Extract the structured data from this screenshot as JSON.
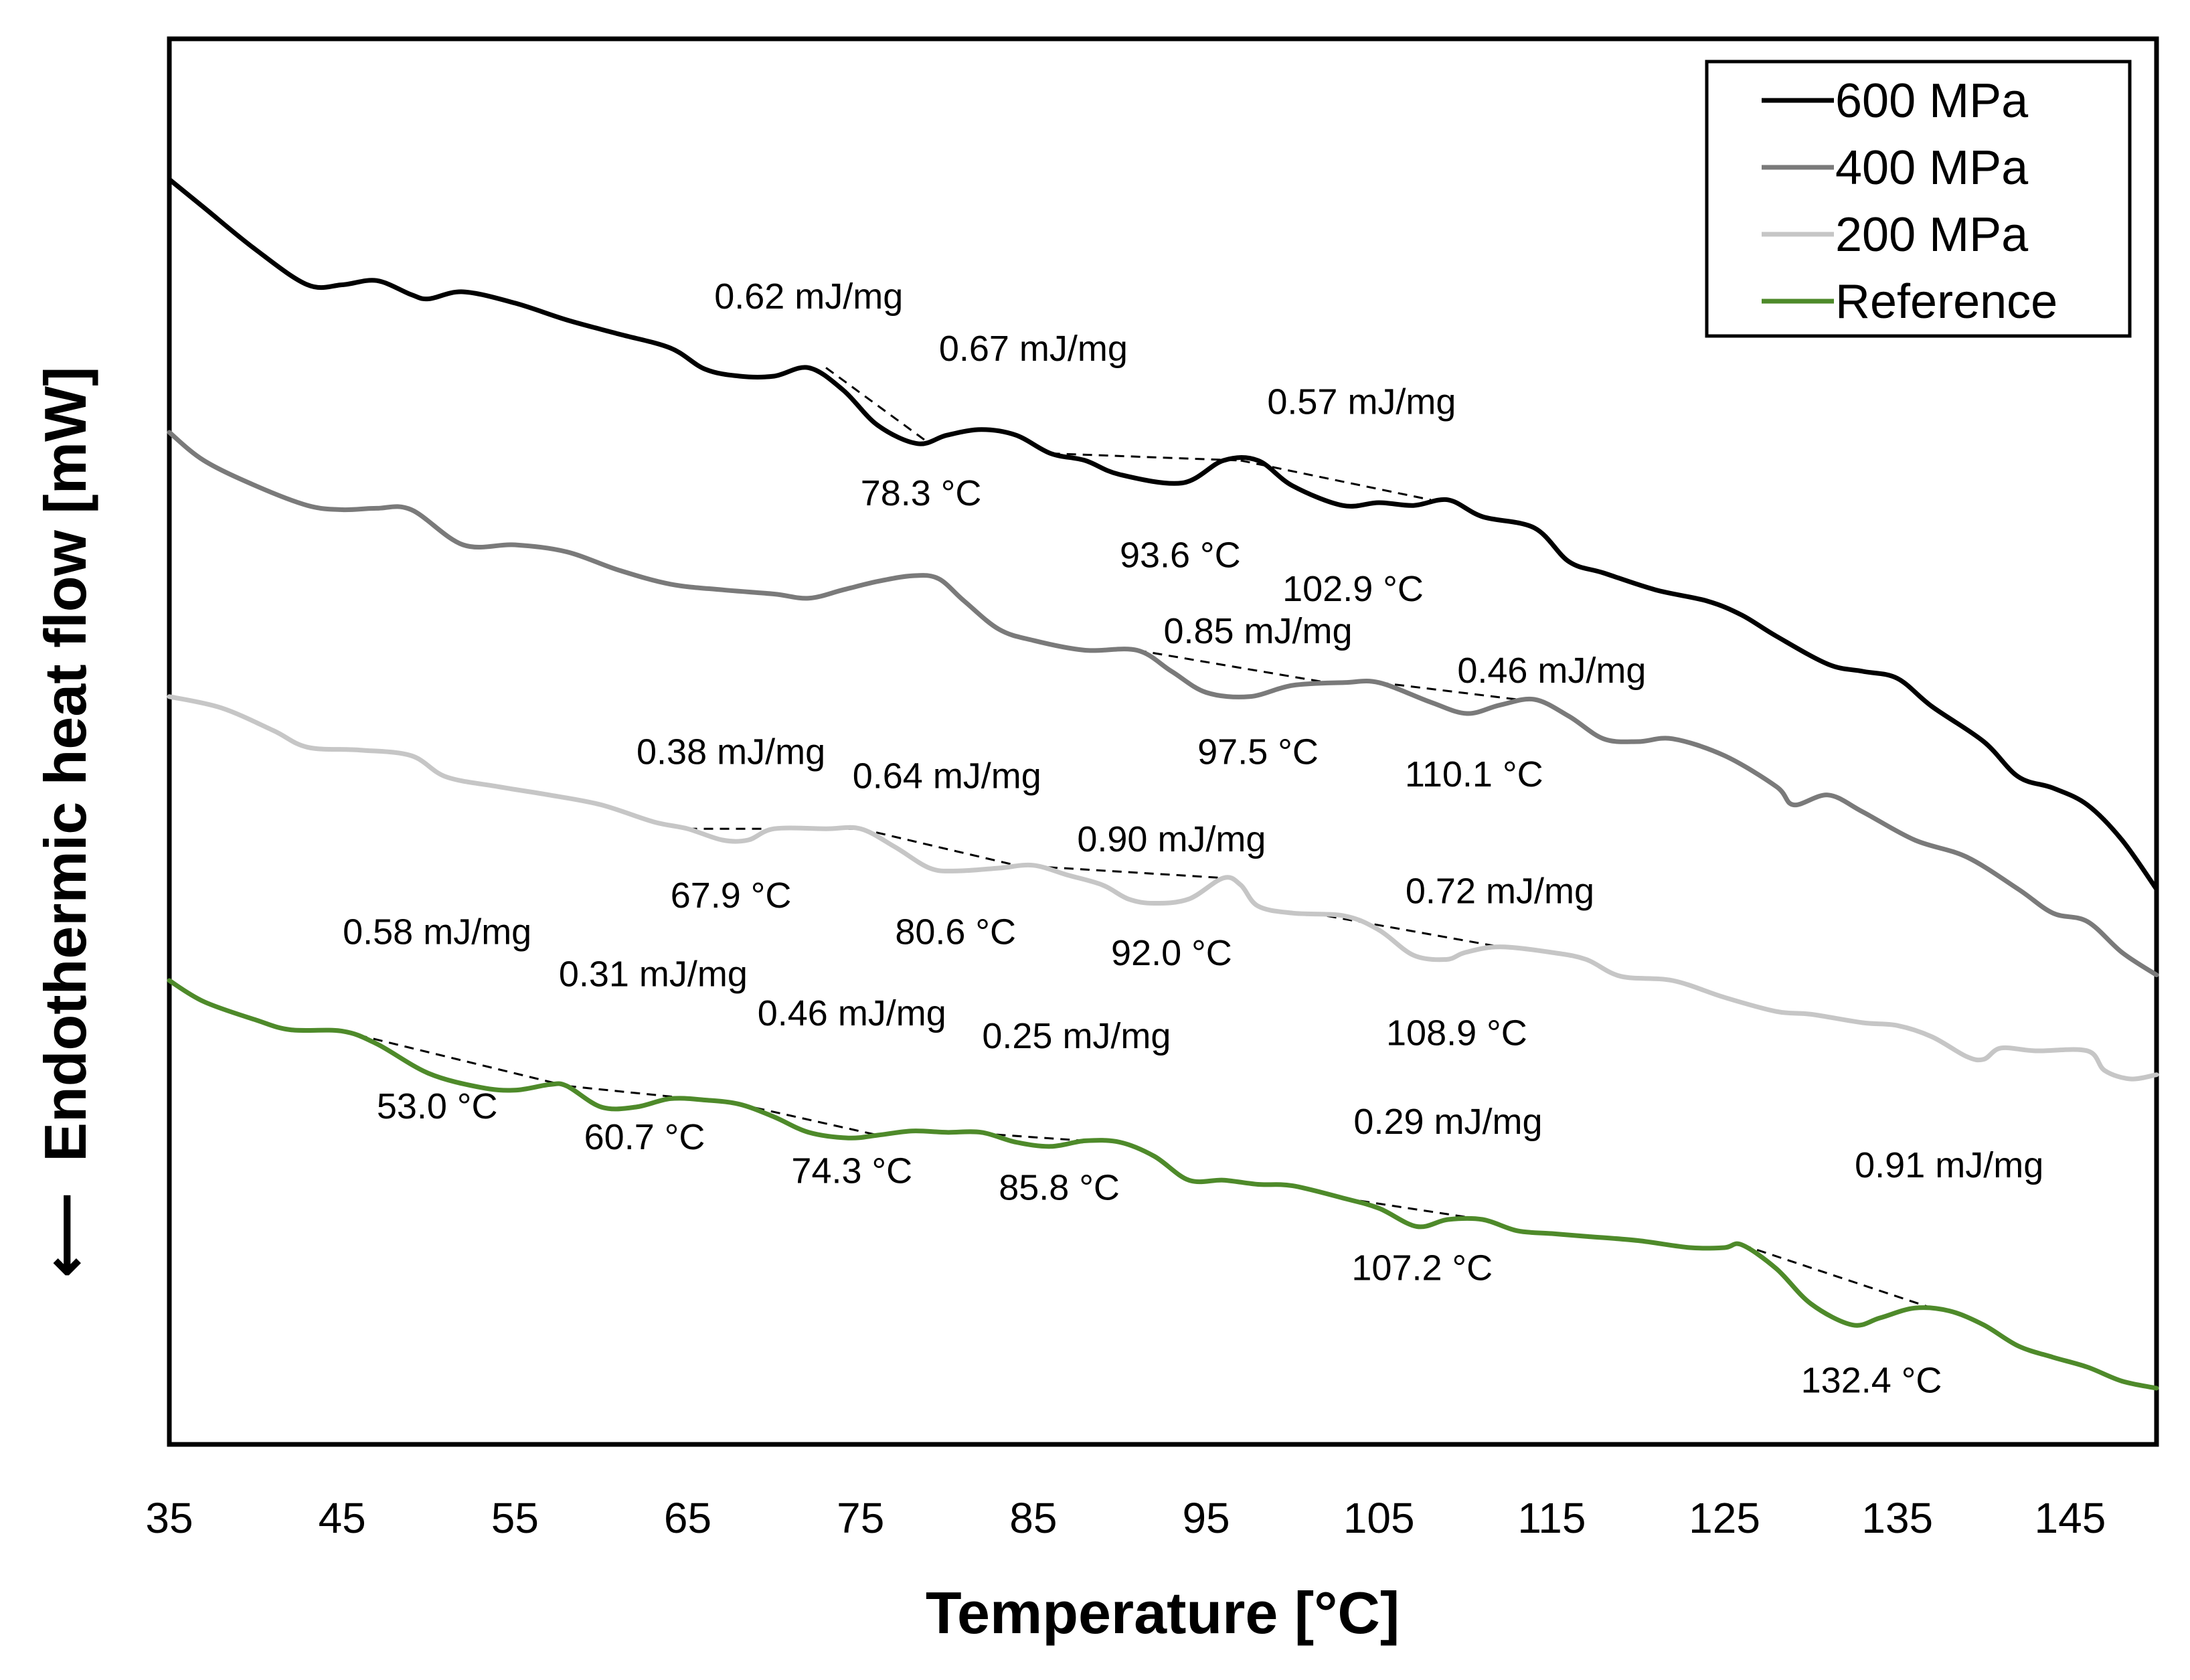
{
  "chart_data": {
    "type": "line",
    "xlabel": "Temperature [°C]",
    "ylabel": "Endothermic heat flow [mW]",
    "ylabel_arrow": "⟵",
    "xlim": [
      35,
      150
    ],
    "x_ticks": [
      35,
      45,
      55,
      65,
      75,
      85,
      95,
      105,
      115,
      125,
      135,
      145
    ],
    "ylim": [
      0,
      1
    ],
    "y_ticks_shown": false,
    "grid": false,
    "legend_position": "top-right",
    "series": [
      {
        "name": "600 MPa",
        "color": "#000000",
        "points": [
          [
            35,
            0.9
          ],
          [
            37,
            0.88
          ],
          [
            40,
            0.85
          ],
          [
            43,
            0.825
          ],
          [
            45,
            0.825
          ],
          [
            47,
            0.828
          ],
          [
            49,
            0.818
          ],
          [
            50,
            0.815
          ],
          [
            52,
            0.82
          ],
          [
            55,
            0.812
          ],
          [
            58,
            0.8
          ],
          [
            61,
            0.79
          ],
          [
            64,
            0.78
          ],
          [
            66,
            0.765
          ],
          [
            68,
            0.76
          ],
          [
            70,
            0.76
          ],
          [
            72,
            0.766
          ],
          [
            74,
            0.75
          ],
          [
            76,
            0.725
          ],
          [
            78.3,
            0.712
          ],
          [
            80,
            0.718
          ],
          [
            82,
            0.722
          ],
          [
            84,
            0.718
          ],
          [
            86,
            0.705
          ],
          [
            88,
            0.7
          ],
          [
            90,
            0.69
          ],
          [
            93.6,
            0.684
          ],
          [
            96,
            0.7
          ],
          [
            98,
            0.7
          ],
          [
            100,
            0.682
          ],
          [
            102.9,
            0.668
          ],
          [
            105,
            0.67
          ],
          [
            107,
            0.668
          ],
          [
            109,
            0.672
          ],
          [
            111,
            0.66
          ],
          [
            114,
            0.652
          ],
          [
            116,
            0.628
          ],
          [
            118,
            0.62
          ],
          [
            121,
            0.608
          ],
          [
            124,
            0.6
          ],
          [
            126,
            0.59
          ],
          [
            128,
            0.575
          ],
          [
            131,
            0.555
          ],
          [
            133,
            0.55
          ],
          [
            135,
            0.545
          ],
          [
            137,
            0.525
          ],
          [
            140,
            0.5
          ],
          [
            142,
            0.475
          ],
          [
            144,
            0.467
          ],
          [
            146,
            0.455
          ],
          [
            148,
            0.43
          ],
          [
            150,
            0.395
          ]
        ]
      },
      {
        "name": "400 MPa",
        "color": "#7a7a7a",
        "points": [
          [
            35,
            0.72
          ],
          [
            37,
            0.7
          ],
          [
            40,
            0.682
          ],
          [
            43,
            0.668
          ],
          [
            45,
            0.665
          ],
          [
            47,
            0.666
          ],
          [
            49,
            0.665
          ],
          [
            52,
            0.64
          ],
          [
            55,
            0.64
          ],
          [
            58,
            0.635
          ],
          [
            61,
            0.622
          ],
          [
            64,
            0.612
          ],
          [
            67,
            0.608
          ],
          [
            70,
            0.605
          ],
          [
            72,
            0.602
          ],
          [
            74,
            0.608
          ],
          [
            76,
            0.614
          ],
          [
            78,
            0.618
          ],
          [
            79.5,
            0.616
          ],
          [
            81,
            0.6
          ],
          [
            83,
            0.58
          ],
          [
            85,
            0.572
          ],
          [
            88,
            0.565
          ],
          [
            91,
            0.565
          ],
          [
            93,
            0.55
          ],
          [
            95,
            0.535
          ],
          [
            97.5,
            0.532
          ],
          [
            100,
            0.54
          ],
          [
            103,
            0.542
          ],
          [
            105,
            0.542
          ],
          [
            108,
            0.528
          ],
          [
            110.1,
            0.52
          ],
          [
            112,
            0.526
          ],
          [
            114,
            0.53
          ],
          [
            116,
            0.518
          ],
          [
            118,
            0.502
          ],
          [
            120,
            0.5
          ],
          [
            122,
            0.502
          ],
          [
            125,
            0.49
          ],
          [
            128,
            0.468
          ],
          [
            129,
            0.455
          ],
          [
            131,
            0.462
          ],
          [
            133,
            0.45
          ],
          [
            136,
            0.43
          ],
          [
            139,
            0.418
          ],
          [
            142,
            0.395
          ],
          [
            144,
            0.378
          ],
          [
            146,
            0.372
          ],
          [
            148,
            0.35
          ],
          [
            150,
            0.334
          ]
        ]
      },
      {
        "name": "200 MPa",
        "color": "#c6c6c6",
        "points": [
          [
            35,
            0.532
          ],
          [
            38,
            0.524
          ],
          [
            41,
            0.508
          ],
          [
            43,
            0.496
          ],
          [
            46,
            0.494
          ],
          [
            49,
            0.49
          ],
          [
            51,
            0.475
          ],
          [
            54,
            0.468
          ],
          [
            57,
            0.462
          ],
          [
            60,
            0.455
          ],
          [
            63,
            0.443
          ],
          [
            65,
            0.438
          ],
          [
            67,
            0.43
          ],
          [
            68.5,
            0.43
          ],
          [
            70,
            0.438
          ],
          [
            73,
            0.438
          ],
          [
            75,
            0.438
          ],
          [
            77,
            0.425
          ],
          [
            79,
            0.41
          ],
          [
            80.6,
            0.408
          ],
          [
            83,
            0.41
          ],
          [
            85,
            0.412
          ],
          [
            87,
            0.405
          ],
          [
            89,
            0.398
          ],
          [
            90.5,
            0.388
          ],
          [
            92,
            0.385
          ],
          [
            94,
            0.388
          ],
          [
            96,
            0.403
          ],
          [
            97,
            0.398
          ],
          [
            98,
            0.383
          ],
          [
            100,
            0.378
          ],
          [
            103,
            0.376
          ],
          [
            105,
            0.366
          ],
          [
            107,
            0.348
          ],
          [
            108.9,
            0.345
          ],
          [
            110,
            0.35
          ],
          [
            112,
            0.354
          ],
          [
            115,
            0.35
          ],
          [
            117,
            0.345
          ],
          [
            119,
            0.333
          ],
          [
            122,
            0.33
          ],
          [
            125,
            0.318
          ],
          [
            128,
            0.308
          ],
          [
            130,
            0.306
          ],
          [
            133,
            0.3
          ],
          [
            135,
            0.298
          ],
          [
            137,
            0.29
          ],
          [
            139,
            0.276
          ],
          [
            140,
            0.274
          ],
          [
            141,
            0.282
          ],
          [
            143,
            0.28
          ],
          [
            146,
            0.28
          ],
          [
            147,
            0.266
          ],
          [
            148.5,
            0.26
          ],
          [
            150,
            0.263
          ]
        ]
      },
      {
        "name": "Reference",
        "color": "#4e8a2a",
        "points": [
          [
            35,
            0.33
          ],
          [
            37,
            0.315
          ],
          [
            40,
            0.302
          ],
          [
            42,
            0.295
          ],
          [
            45,
            0.294
          ],
          [
            47,
            0.285
          ],
          [
            50,
            0.264
          ],
          [
            53,
            0.254
          ],
          [
            55,
            0.252
          ],
          [
            57,
            0.256
          ],
          [
            58,
            0.255
          ],
          [
            60,
            0.24
          ],
          [
            62,
            0.24
          ],
          [
            64,
            0.246
          ],
          [
            66,
            0.245
          ],
          [
            68,
            0.242
          ],
          [
            70,
            0.233
          ],
          [
            72,
            0.222
          ],
          [
            74.3,
            0.218
          ],
          [
            76,
            0.22
          ],
          [
            78,
            0.223
          ],
          [
            80,
            0.222
          ],
          [
            82,
            0.222
          ],
          [
            84,
            0.215
          ],
          [
            86,
            0.212
          ],
          [
            88,
            0.216
          ],
          [
            90,
            0.215
          ],
          [
            92,
            0.205
          ],
          [
            94,
            0.188
          ],
          [
            96,
            0.188
          ],
          [
            98,
            0.185
          ],
          [
            100,
            0.184
          ],
          [
            103,
            0.175
          ],
          [
            105,
            0.168
          ],
          [
            107.2,
            0.155
          ],
          [
            109,
            0.16
          ],
          [
            111,
            0.16
          ],
          [
            113,
            0.152
          ],
          [
            115,
            0.15
          ],
          [
            117,
            0.148
          ],
          [
            120,
            0.145
          ],
          [
            123,
            0.14
          ],
          [
            125,
            0.14
          ],
          [
            126,
            0.142
          ],
          [
            128,
            0.125
          ],
          [
            130,
            0.1
          ],
          [
            132.4,
            0.085
          ],
          [
            134,
            0.09
          ],
          [
            136,
            0.097
          ],
          [
            138,
            0.095
          ],
          [
            140,
            0.085
          ],
          [
            142,
            0.07
          ],
          [
            144,
            0.062
          ],
          [
            146,
            0.055
          ],
          [
            148,
            0.045
          ],
          [
            150,
            0.04
          ]
        ]
      }
    ],
    "tangent_lines": [
      [
        [
          73,
          0.766
        ],
        [
          79,
          0.712
        ]
      ],
      [
        [
          86,
          0.705
        ],
        [
          97,
          0.7
        ]
      ],
      [
        [
          97,
          0.7
        ],
        [
          108,
          0.672
        ]
      ],
      [
        [
          91,
          0.565
        ],
        [
          102,
          0.542
        ]
      ],
      [
        [
          105,
          0.542
        ],
        [
          113,
          0.53
        ]
      ],
      [
        [
          65,
          0.438
        ],
        [
          75,
          0.438
        ]
      ],
      [
        [
          75,
          0.438
        ],
        [
          84,
          0.412
        ]
      ],
      [
        [
          84,
          0.412
        ],
        [
          96,
          0.403
        ]
      ],
      [
        [
          102,
          0.376
        ],
        [
          112,
          0.354
        ]
      ],
      [
        [
          45,
          0.294
        ],
        [
          58,
          0.255
        ]
      ],
      [
        [
          58,
          0.255
        ],
        [
          66,
          0.245
        ]
      ],
      [
        [
          68,
          0.242
        ],
        [
          76,
          0.22
        ]
      ],
      [
        [
          81,
          0.222
        ],
        [
          88,
          0.216
        ]
      ],
      [
        [
          103,
          0.175
        ],
        [
          111,
          0.16
        ]
      ],
      [
        [
          126,
          0.142
        ],
        [
          137,
          0.097
        ]
      ]
    ],
    "annotations": [
      {
        "text": "0.62 mJ/mg",
        "x": 72,
        "y": 0.808
      },
      {
        "text": "0.67 mJ/mg",
        "x": 85,
        "y": 0.771
      },
      {
        "text": "0.57 mJ/mg",
        "x": 104,
        "y": 0.733
      },
      {
        "text": "78.3 °C",
        "x": 78.5,
        "y": 0.668
      },
      {
        "text": "93.6 °C",
        "x": 93.5,
        "y": 0.624
      },
      {
        "text": "102.9 °C",
        "x": 103.5,
        "y": 0.6
      },
      {
        "text": "0.85 mJ/mg",
        "x": 98,
        "y": 0.57
      },
      {
        "text": "0.46 mJ/mg",
        "x": 115,
        "y": 0.542
      },
      {
        "text": "97.5 °C",
        "x": 98,
        "y": 0.484
      },
      {
        "text": "110.1 °C",
        "x": 110.5,
        "y": 0.468
      },
      {
        "text": "0.38 mJ/mg",
        "x": 67.5,
        "y": 0.484
      },
      {
        "text": "0.64 mJ/mg",
        "x": 80,
        "y": 0.467
      },
      {
        "text": "0.90 mJ/mg",
        "x": 93,
        "y": 0.422
      },
      {
        "text": "0.72 mJ/mg",
        "x": 112,
        "y": 0.385
      },
      {
        "text": "67.9 °C",
        "x": 67.5,
        "y": 0.382
      },
      {
        "text": "80.6 °C",
        "x": 80.5,
        "y": 0.356
      },
      {
        "text": "92.0 °C",
        "x": 93,
        "y": 0.341
      },
      {
        "text": "108.9 °C",
        "x": 109.5,
        "y": 0.284
      },
      {
        "text": "0.58 mJ/mg",
        "x": 50.5,
        "y": 0.356
      },
      {
        "text": "0.31 mJ/mg",
        "x": 63,
        "y": 0.326
      },
      {
        "text": "0.46 mJ/mg",
        "x": 74.5,
        "y": 0.298
      },
      {
        "text": "0.25 mJ/mg",
        "x": 87.5,
        "y": 0.282
      },
      {
        "text": "0.29 mJ/mg",
        "x": 109,
        "y": 0.221
      },
      {
        "text": "0.91 mJ/mg",
        "x": 138,
        "y": 0.19
      },
      {
        "text": "53.0 °C",
        "x": 50.5,
        "y": 0.232
      },
      {
        "text": "60.7 °C",
        "x": 62.5,
        "y": 0.21
      },
      {
        "text": "74.3 °C",
        "x": 74.5,
        "y": 0.186
      },
      {
        "text": "85.8 °C",
        "x": 86.5,
        "y": 0.174
      },
      {
        "text": "107.2 °C",
        "x": 107.5,
        "y": 0.117
      },
      {
        "text": "132.4 °C",
        "x": 133.5,
        "y": 0.037
      }
    ]
  }
}
